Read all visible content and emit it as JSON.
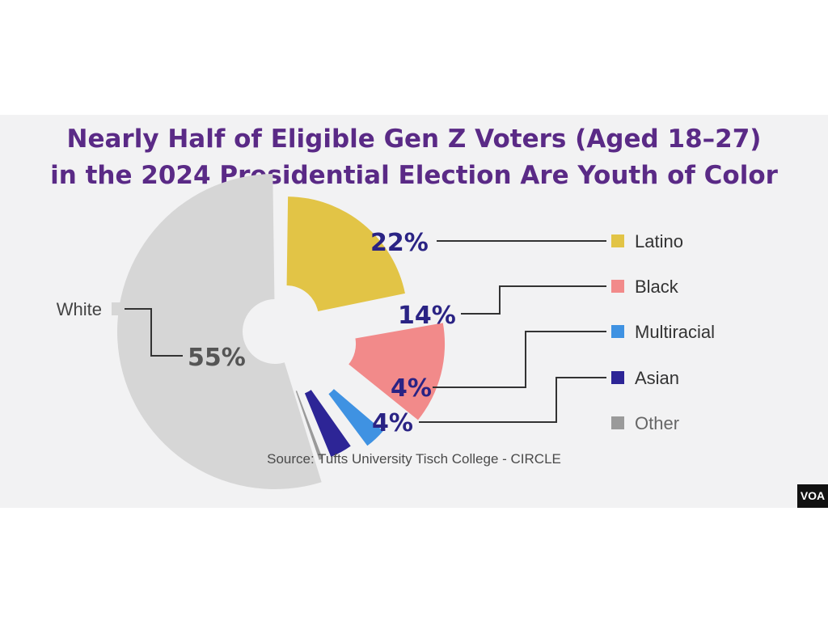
{
  "title_lines": [
    "Nearly Half of Eligible Gen Z Voters (Aged 18–27)",
    "in the 2024 Presidential Election Are Youth of Color"
  ],
  "source": "Source: Tufts University Tisch College - CIRCLE",
  "logo": "VOA",
  "chart_data": {
    "type": "pie",
    "title": "Nearly Half of Eligible Gen Z Voters (Aged 18–27) in the 2024 Presidential Election Are Youth of Color",
    "legend_position": "right",
    "slices": [
      {
        "label": "Latino",
        "value": 22,
        "value_label": "22%",
        "color": "#e2c446"
      },
      {
        "label": "Black",
        "value": 14,
        "value_label": "14%",
        "color": "#f28a8a"
      },
      {
        "label": "Multiracial",
        "value": 4,
        "value_label": "4%",
        "color": "#3f92e2"
      },
      {
        "label": "Asian",
        "value": 4,
        "value_label": "4%",
        "color": "#2d2596"
      },
      {
        "label": "Other",
        "value": 1,
        "value_label": "",
        "color": "#9a9a9a"
      },
      {
        "label": "White",
        "value": 55,
        "value_label": "55%",
        "color": "#d6d6d6"
      }
    ]
  }
}
